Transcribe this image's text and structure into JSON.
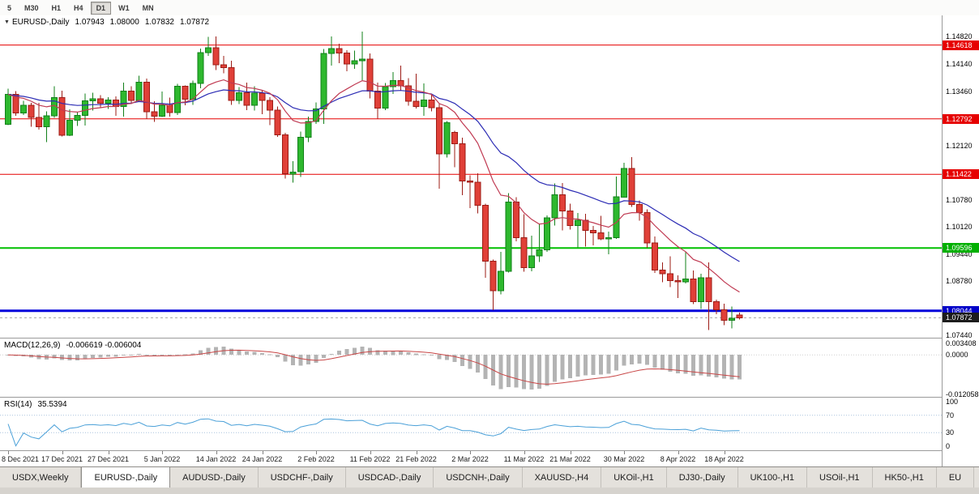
{
  "toolbar": {
    "items": [
      "5",
      "M30",
      "H1",
      "H4",
      "D1",
      "W1",
      "MN"
    ],
    "active": "D1"
  },
  "chart": {
    "dropdown_icon": "▼",
    "symbol_period": "EURUSD-,Daily",
    "ohlc": {
      "open": "1.07943",
      "high": "1.08000",
      "low": "1.07832",
      "close": "1.07872"
    }
  },
  "price_axis": {
    "min": 1.0738,
    "max": 1.1535,
    "ticks": [
      "1.14820",
      "1.14140",
      "1.13460",
      "1.12120",
      "1.10780",
      "1.10120",
      "1.09440",
      "1.08780",
      "1.07440"
    ],
    "levels": [
      {
        "price": 1.14618,
        "label": "1.14618",
        "color": "#e60000",
        "badge": "#e60000",
        "width": 1,
        "style": "solid"
      },
      {
        "price": 1.12792,
        "label": "1.12792",
        "color": "#e60000",
        "badge": "#e60000",
        "width": 1,
        "style": "solid"
      },
      {
        "price": 1.11422,
        "label": "1.11422",
        "color": "#e60000",
        "badge": "#e60000",
        "width": 1,
        "style": "solid"
      },
      {
        "price": 1.09596,
        "label": "1.09596",
        "color": "#00c000",
        "badge": "#00b000",
        "width": 2,
        "style": "solid"
      },
      {
        "price": 1.08044,
        "label": "1.08044",
        "color": "#0000dc",
        "badge": "#0000c8",
        "width": 3,
        "style": "solid"
      },
      {
        "price": 1.07872,
        "label": "1.07872",
        "color": "#a8a8a8",
        "badge": "#1c1c1c",
        "width": 1,
        "style": "dashed"
      }
    ]
  },
  "moving_averages": [
    {
      "name": "fast",
      "period": 12,
      "color": "#c03a52"
    },
    {
      "name": "slow",
      "period": 26,
      "color": "#2b2bb4"
    }
  ],
  "indicators": {
    "macd": {
      "label": "MACD(12,26,9)",
      "values_text": "-0.006619 -0.006004",
      "fast": 12,
      "slow": 26,
      "signal": 9,
      "scale_max": 0.005,
      "scale_min": -0.0128,
      "axis_labels": [
        {
          "text": "0.003408",
          "value": 0.003408
        },
        {
          "text": "0.0000",
          "value": 0
        },
        {
          "text": "-0.012058",
          "value": -0.012058
        }
      ]
    },
    "rsi": {
      "label": "RSI(14)",
      "value": "35.5394",
      "period": 14,
      "levels": [
        70,
        30
      ],
      "scale_max": 110,
      "scale_min": -10,
      "axis_labels": [
        {
          "text": "100",
          "value": 100
        },
        {
          "text": "70",
          "value": 70
        },
        {
          "text": "30",
          "value": 30
        },
        {
          "text": "0",
          "value": 0
        }
      ]
    }
  },
  "colors": {
    "bull": "#2eb82e",
    "bull_border": "#12801a",
    "bear": "#e04038",
    "bear_border": "#9c1c16",
    "macd_hist": "#b4b4b4",
    "macd_signal": "#c84646",
    "rsi_line": "#4aa0d8",
    "rsi_level": "#aac4de"
  },
  "tabs": {
    "items": [
      "USDX,Weekly",
      "EURUSD-,Daily",
      "AUDUSD-,Daily",
      "USDCHF-,Daily",
      "USDCAD-,Daily",
      "USDCNH-,Daily",
      "XAUUSD-,H4",
      "UKOil-,H1",
      "DJ30-,Daily",
      "UK100-,H1",
      "USOil-,H1",
      "HK50-,H1",
      "EU"
    ],
    "active": "EURUSD-,Daily"
  },
  "chart_data": {
    "type": "candlestick",
    "title": "EURUSD-,Daily",
    "symbol": "EURUSD",
    "timeframe": "Daily",
    "ylim": [
      1.0738,
      1.1535
    ],
    "x_labels": [
      {
        "text": "8 Dec 2021",
        "index": 0
      },
      {
        "text": "17 Dec 2021",
        "index": 7
      },
      {
        "text": "27 Dec 2021",
        "index": 13
      },
      {
        "text": "5 Jan 2022",
        "index": 20
      },
      {
        "text": "14 Jan 2022",
        "index": 27
      },
      {
        "text": "24 Jan 2022",
        "index": 33
      },
      {
        "text": "2 Feb 2022",
        "index": 40
      },
      {
        "text": "11 Feb 2022",
        "index": 47
      },
      {
        "text": "21 Feb 2022",
        "index": 53
      },
      {
        "text": "2 Mar 2022",
        "index": 60
      },
      {
        "text": "11 Mar 2022",
        "index": 67
      },
      {
        "text": "21 Mar 2022",
        "index": 73
      },
      {
        "text": "30 Mar 2022",
        "index": 80
      },
      {
        "text": "8 Apr 2022",
        "index": 87
      },
      {
        "text": "18 Apr 2022",
        "index": 93
      }
    ],
    "candles": [
      [
        1.1266,
        1.1354,
        1.1264,
        1.134
      ],
      [
        1.134,
        1.1348,
        1.1287,
        1.1294
      ],
      [
        1.1294,
        1.1324,
        1.1289,
        1.1313
      ],
      [
        1.1313,
        1.1319,
        1.126,
        1.1283
      ],
      [
        1.1283,
        1.1319,
        1.1253,
        1.126
      ],
      [
        1.126,
        1.1298,
        1.1222,
        1.1287
      ],
      [
        1.1287,
        1.136,
        1.1282,
        1.1332
      ],
      [
        1.1332,
        1.1349,
        1.1236,
        1.1239
      ],
      [
        1.1239,
        1.1303,
        1.1237,
        1.1276
      ],
      [
        1.1276,
        1.1296,
        1.1262,
        1.1288
      ],
      [
        1.1288,
        1.1342,
        1.1263,
        1.1324
      ],
      [
        1.1324,
        1.1344,
        1.13,
        1.1329
      ],
      [
        1.1329,
        1.1338,
        1.1308,
        1.1318
      ],
      [
        1.1318,
        1.1333,
        1.1304,
        1.1326
      ],
      [
        1.1326,
        1.1335,
        1.1287,
        1.131
      ],
      [
        1.131,
        1.1369,
        1.1285,
        1.1348
      ],
      [
        1.1348,
        1.136,
        1.1316,
        1.1325
      ],
      [
        1.1325,
        1.1386,
        1.1321,
        1.137
      ],
      [
        1.137,
        1.1379,
        1.1279,
        1.1297
      ],
      [
        1.1297,
        1.1323,
        1.1272,
        1.1286
      ],
      [
        1.1286,
        1.1347,
        1.1284,
        1.1313
      ],
      [
        1.1313,
        1.1332,
        1.1285,
        1.1295
      ],
      [
        1.1295,
        1.1366,
        1.1289,
        1.136
      ],
      [
        1.136,
        1.1362,
        1.1313,
        1.1328
      ],
      [
        1.1328,
        1.1374,
        1.1314,
        1.1367
      ],
      [
        1.1367,
        1.1453,
        1.1355,
        1.1443
      ],
      [
        1.1443,
        1.1482,
        1.1435,
        1.1455
      ],
      [
        1.1455,
        1.1483,
        1.14,
        1.1413
      ],
      [
        1.1413,
        1.1435,
        1.1392,
        1.1406
      ],
      [
        1.1406,
        1.1423,
        1.1314,
        1.1325
      ],
      [
        1.1325,
        1.1358,
        1.1316,
        1.1344
      ],
      [
        1.1344,
        1.1369,
        1.1301,
        1.1313
      ],
      [
        1.1313,
        1.136,
        1.13,
        1.1343
      ],
      [
        1.1343,
        1.1349,
        1.1291,
        1.1325
      ],
      [
        1.1325,
        1.1333,
        1.1264,
        1.1301
      ],
      [
        1.1301,
        1.131,
        1.1235,
        1.124
      ],
      [
        1.124,
        1.1245,
        1.1131,
        1.1143
      ],
      [
        1.1143,
        1.1175,
        1.1121,
        1.1148
      ],
      [
        1.1148,
        1.1248,
        1.1135,
        1.1234
      ],
      [
        1.1234,
        1.1285,
        1.1222,
        1.1273
      ],
      [
        1.1273,
        1.132,
        1.1267,
        1.1304
      ],
      [
        1.1304,
        1.1452,
        1.1267,
        1.1441
      ],
      [
        1.1441,
        1.1483,
        1.1411,
        1.1453
      ],
      [
        1.1453,
        1.1465,
        1.1417,
        1.1442
      ],
      [
        1.1442,
        1.1449,
        1.1397,
        1.1415
      ],
      [
        1.1415,
        1.1448,
        1.1403,
        1.1423
      ],
      [
        1.1423,
        1.1495,
        1.1375,
        1.1427
      ],
      [
        1.1427,
        1.1441,
        1.133,
        1.1348
      ],
      [
        1.1348,
        1.1369,
        1.128,
        1.1306
      ],
      [
        1.1306,
        1.1368,
        1.1301,
        1.1359
      ],
      [
        1.1359,
        1.1395,
        1.1341,
        1.1374
      ],
      [
        1.1374,
        1.1411,
        1.1349,
        1.1361
      ],
      [
        1.1361,
        1.138,
        1.1312,
        1.1323
      ],
      [
        1.1323,
        1.1391,
        1.1305,
        1.131
      ],
      [
        1.131,
        1.1367,
        1.1287,
        1.1326
      ],
      [
        1.1326,
        1.1342,
        1.1298,
        1.1307
      ],
      [
        1.1307,
        1.1317,
        1.1106,
        1.1193
      ],
      [
        1.1193,
        1.1274,
        1.1184,
        1.127
      ],
      [
        1.1246,
        1.125,
        1.116,
        1.1218
      ],
      [
        1.1218,
        1.1233,
        1.109,
        1.1125
      ],
      [
        1.1125,
        1.114,
        1.1058,
        1.1122
      ],
      [
        1.1122,
        1.1145,
        1.1045,
        1.1065
      ],
      [
        1.1065,
        1.1069,
        1.0886,
        1.0927
      ],
      [
        1.0927,
        1.0931,
        1.0806,
        1.0854
      ],
      [
        1.0854,
        1.095,
        1.0845,
        1.0902
      ],
      [
        1.0902,
        1.1095,
        1.0899,
        1.1073
      ],
      [
        1.1073,
        1.1085,
        1.0976,
        1.0985
      ],
      [
        1.0985,
        1.1043,
        1.0901,
        1.0911
      ],
      [
        1.0911,
        1.099,
        1.0902,
        1.094
      ],
      [
        1.094,
        1.102,
        1.0925,
        1.0955
      ],
      [
        1.0955,
        1.104,
        1.095,
        1.1034
      ],
      [
        1.1034,
        1.1119,
        1.1015,
        1.1091
      ],
      [
        1.1091,
        1.112,
        1.1003,
        1.1051
      ],
      [
        1.1051,
        1.1069,
        1.1005,
        1.1015
      ],
      [
        1.1015,
        1.1046,
        1.0961,
        1.1028
      ],
      [
        1.1028,
        1.1044,
        1.0963,
        1.1003
      ],
      [
        1.1003,
        1.1014,
        1.0966,
        1.0997
      ],
      [
        1.0997,
        1.1039,
        1.0979,
        1.0982
      ],
      [
        1.0982,
        1.1,
        1.0944,
        1.0985
      ],
      [
        1.0985,
        1.1137,
        1.0982,
        1.1086
      ],
      [
        1.1086,
        1.1171,
        1.1084,
        1.1157
      ],
      [
        1.1157,
        1.1185,
        1.1061,
        1.1067
      ],
      [
        1.1067,
        1.1077,
        1.1027,
        1.1047
      ],
      [
        1.1047,
        1.1055,
        1.096,
        1.0972
      ],
      [
        1.0972,
        1.0988,
        1.0898,
        1.0905
      ],
      [
        1.0905,
        1.0924,
        1.0875,
        1.0896
      ],
      [
        1.0896,
        1.0939,
        1.0863,
        1.0879
      ],
      [
        1.0879,
        1.0892,
        1.0836,
        1.0876
      ],
      [
        1.0876,
        1.095,
        1.0872,
        1.0883
      ],
      [
        1.0883,
        1.0904,
        1.0821,
        1.0827
      ],
      [
        1.0827,
        1.0896,
        1.0809,
        1.0886
      ],
      [
        1.0886,
        1.0924,
        1.0757,
        1.0827
      ],
      [
        1.0827,
        1.0832,
        1.0796,
        1.0807
      ],
      [
        1.0807,
        1.0822,
        1.0769,
        1.0781
      ],
      [
        1.0781,
        1.0815,
        1.0761,
        1.0786
      ],
      [
        1.07943,
        1.08,
        1.07832,
        1.07872
      ]
    ]
  }
}
